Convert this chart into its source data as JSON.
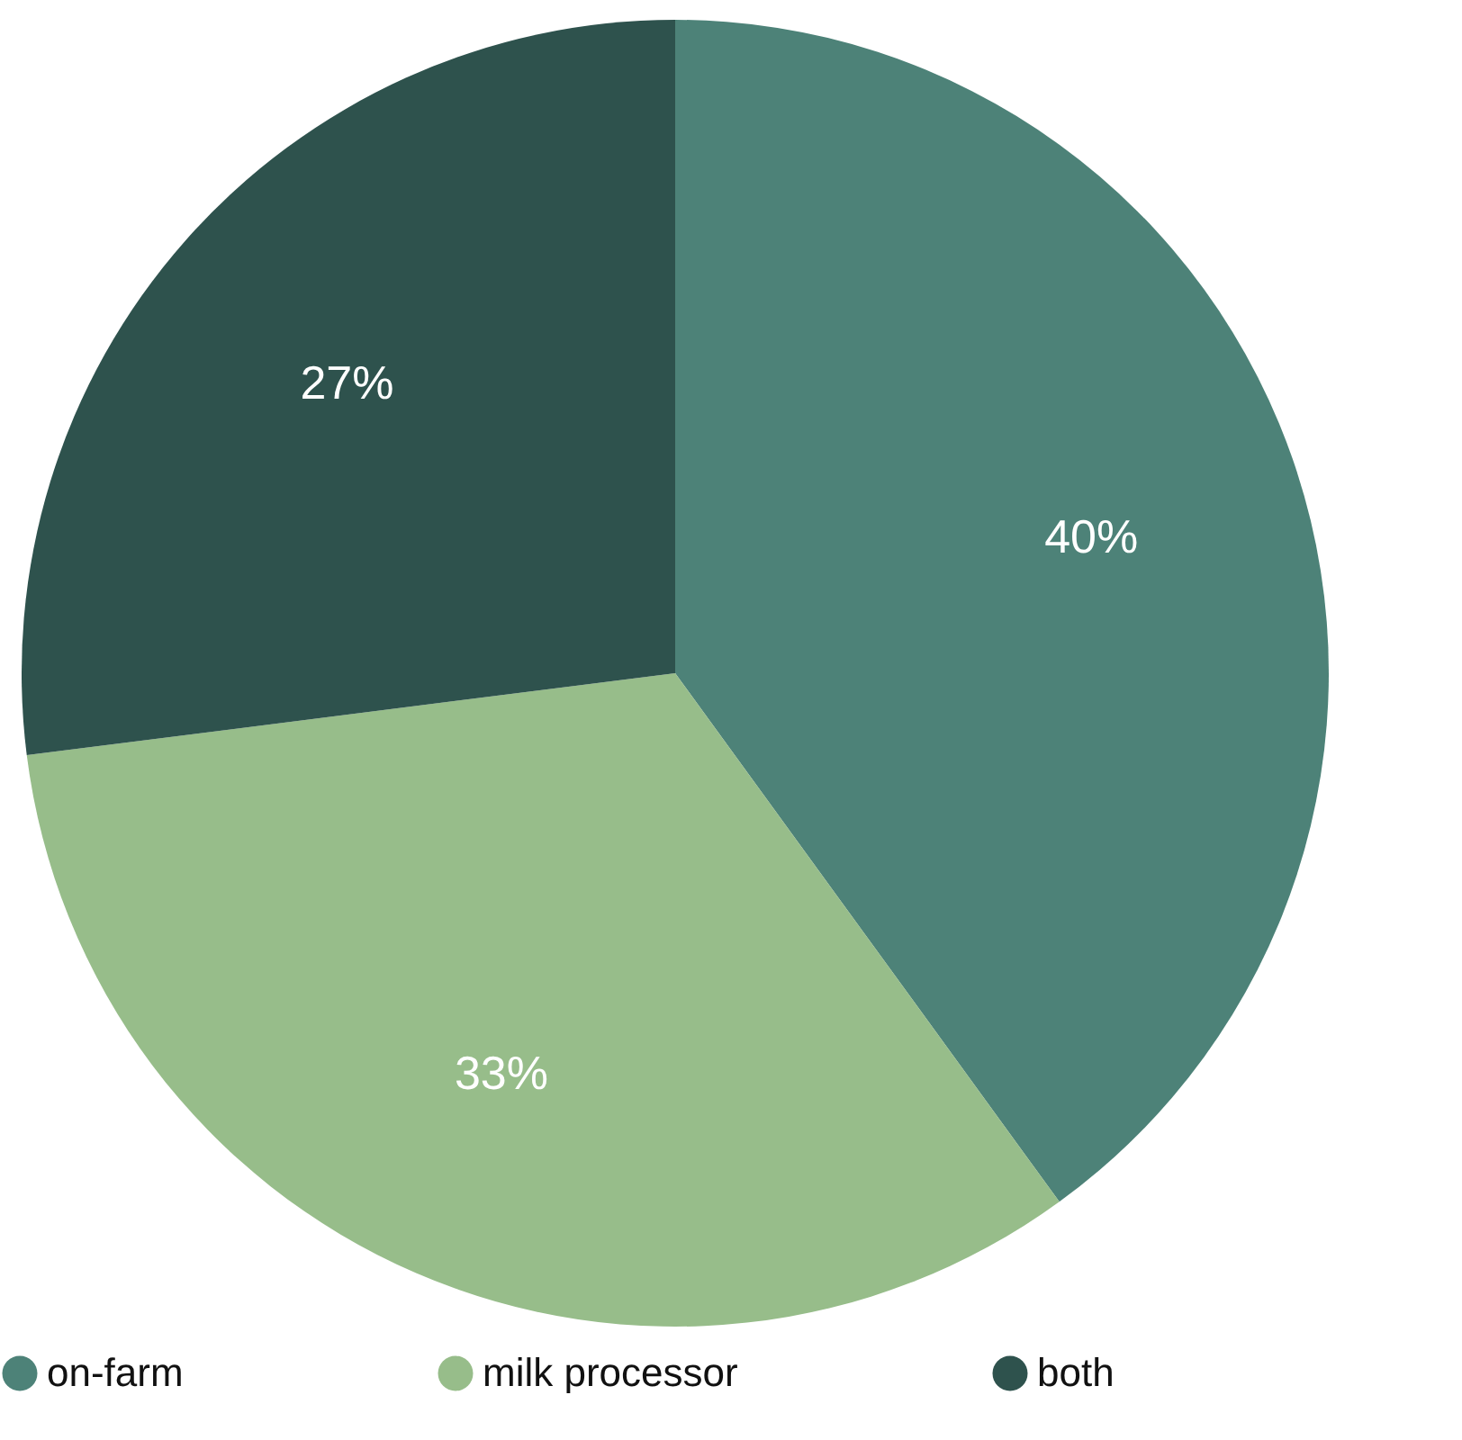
{
  "chart_data": {
    "type": "pie",
    "categories": [
      "on-farm",
      "milk processor",
      "both"
    ],
    "values": [
      40,
      33,
      27
    ],
    "colors": [
      "#4d8278",
      "#97bd8a",
      "#2e524d"
    ],
    "value_labels": [
      "40%",
      "33%",
      "27%"
    ],
    "legend": "bottom"
  }
}
